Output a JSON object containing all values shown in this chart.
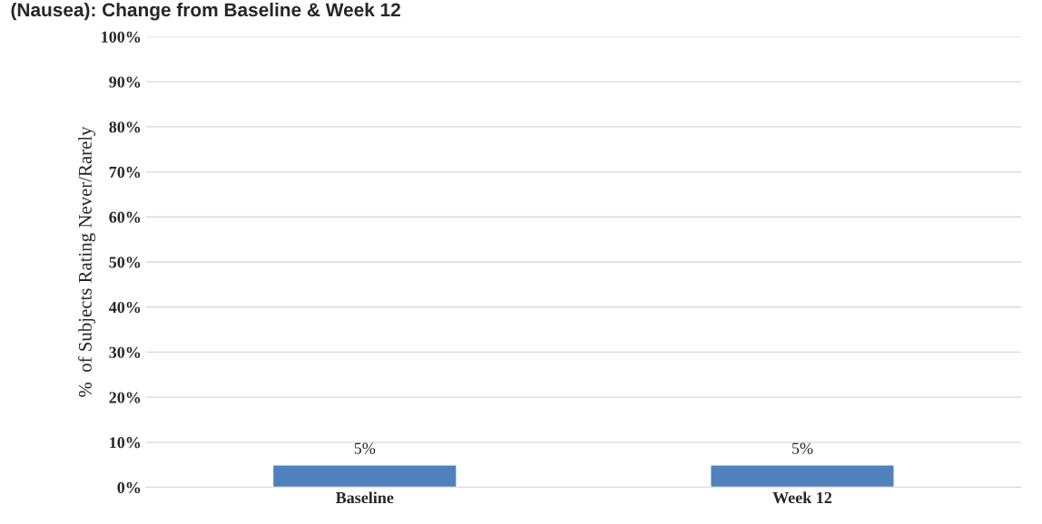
{
  "chart_data": {
    "type": "bar",
    "title": "(Nausea): Change from Baseline & Week 12",
    "ylabel": "%  of Subjects Rating Never/Rarely",
    "categories": [
      "Baseline",
      "Week 12"
    ],
    "values": [
      5,
      5
    ],
    "value_labels": [
      "5%",
      "5%"
    ],
    "color": "#4f81bd",
    "ylim": [
      0,
      100
    ],
    "yticks": [
      {
        "value": 0,
        "label": "0%"
      },
      {
        "value": 10,
        "label": "10%"
      },
      {
        "value": 20,
        "label": "20%"
      },
      {
        "value": 30,
        "label": "30%"
      },
      {
        "value": 40,
        "label": "40%"
      },
      {
        "value": 50,
        "label": "50%"
      },
      {
        "value": 60,
        "label": "60%"
      },
      {
        "value": 70,
        "label": "70%"
      },
      {
        "value": 80,
        "label": "80%"
      },
      {
        "value": 90,
        "label": "90%"
      },
      {
        "value": 100,
        "label": "100%"
      }
    ],
    "grid": "y"
  }
}
